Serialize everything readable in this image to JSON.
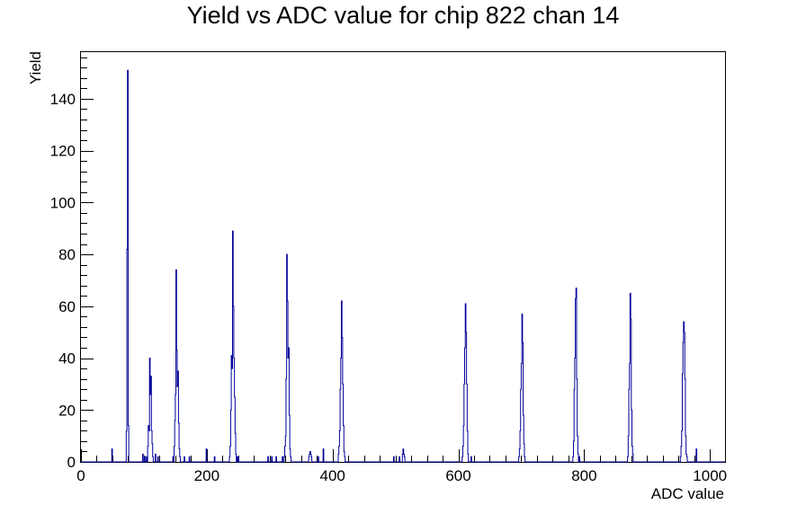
{
  "chart_data": {
    "type": "histogram",
    "title": "Yield vs ADC value for chip 822 chan 14",
    "xlabel": "ADC value",
    "ylabel": "Yield",
    "xlim": [
      0,
      1024
    ],
    "ylim": [
      0,
      158
    ],
    "xticks": [
      0,
      200,
      400,
      600,
      800,
      1000
    ],
    "yticks": [
      0,
      20,
      40,
      60,
      80,
      100,
      120,
      140
    ],
    "x_minor_step": 25,
    "y_minor_step": 4,
    "line_color": "#000099",
    "bin_width": 1,
    "bins": [
      [
        49,
        5
      ],
      [
        72,
        12
      ],
      [
        73,
        82
      ],
      [
        74,
        151
      ],
      [
        75,
        14
      ],
      [
        98,
        3
      ],
      [
        101,
        2
      ],
      [
        104,
        2
      ],
      [
        106,
        6
      ],
      [
        107,
        14
      ],
      [
        108,
        12
      ],
      [
        109,
        40
      ],
      [
        110,
        26
      ],
      [
        111,
        33
      ],
      [
        112,
        12
      ],
      [
        113,
        7
      ],
      [
        114,
        2
      ],
      [
        118,
        3
      ],
      [
        122,
        2
      ],
      [
        146,
        2
      ],
      [
        148,
        6
      ],
      [
        149,
        16
      ],
      [
        150,
        26
      ],
      [
        151,
        74
      ],
      [
        152,
        43
      ],
      [
        153,
        29
      ],
      [
        154,
        35
      ],
      [
        155,
        15
      ],
      [
        156,
        5
      ],
      [
        157,
        2
      ],
      [
        164,
        2
      ],
      [
        172,
        2
      ],
      [
        199,
        5
      ],
      [
        212,
        2
      ],
      [
        236,
        2
      ],
      [
        237,
        6
      ],
      [
        238,
        20
      ],
      [
        239,
        41
      ],
      [
        240,
        36
      ],
      [
        241,
        89
      ],
      [
        242,
        60
      ],
      [
        243,
        40
      ],
      [
        244,
        25
      ],
      [
        245,
        11
      ],
      [
        246,
        3
      ],
      [
        248,
        2
      ],
      [
        250,
        2
      ],
      [
        297,
        2
      ],
      [
        303,
        2
      ],
      [
        310,
        2
      ],
      [
        320,
        2
      ],
      [
        323,
        2
      ],
      [
        324,
        6
      ],
      [
        325,
        10
      ],
      [
        326,
        32
      ],
      [
        327,
        80
      ],
      [
        328,
        62
      ],
      [
        329,
        40
      ],
      [
        330,
        44
      ],
      [
        331,
        18
      ],
      [
        332,
        5
      ],
      [
        333,
        2
      ],
      [
        362,
        2
      ],
      [
        363,
        3
      ],
      [
        364,
        4
      ],
      [
        365,
        3
      ],
      [
        366,
        2
      ],
      [
        377,
        2
      ],
      [
        385,
        5
      ],
      [
        409,
        3
      ],
      [
        410,
        6
      ],
      [
        411,
        12
      ],
      [
        412,
        28
      ],
      [
        413,
        40
      ],
      [
        414,
        62
      ],
      [
        415,
        48
      ],
      [
        416,
        30
      ],
      [
        417,
        14
      ],
      [
        418,
        4
      ],
      [
        419,
        2
      ],
      [
        497,
        2
      ],
      [
        506,
        2
      ],
      [
        511,
        3
      ],
      [
        512,
        5
      ],
      [
        513,
        3
      ],
      [
        514,
        2
      ],
      [
        606,
        2
      ],
      [
        607,
        6
      ],
      [
        608,
        14
      ],
      [
        609,
        30
      ],
      [
        610,
        44
      ],
      [
        611,
        61
      ],
      [
        612,
        50
      ],
      [
        613,
        30
      ],
      [
        614,
        12
      ],
      [
        615,
        3
      ],
      [
        620,
        2
      ],
      [
        696,
        2
      ],
      [
        697,
        5
      ],
      [
        698,
        12
      ],
      [
        699,
        28
      ],
      [
        700,
        38
      ],
      [
        701,
        57
      ],
      [
        702,
        46
      ],
      [
        703,
        18
      ],
      [
        704,
        7
      ],
      [
        705,
        2
      ],
      [
        782,
        2
      ],
      [
        783,
        8
      ],
      [
        784,
        28
      ],
      [
        785,
        40
      ],
      [
        786,
        63
      ],
      [
        787,
        67
      ],
      [
        788,
        32
      ],
      [
        789,
        10
      ],
      [
        790,
        3
      ],
      [
        792,
        2
      ],
      [
        869,
        2
      ],
      [
        870,
        10
      ],
      [
        871,
        28
      ],
      [
        872,
        38
      ],
      [
        873,
        65
      ],
      [
        874,
        55
      ],
      [
        875,
        20
      ],
      [
        876,
        6
      ],
      [
        877,
        3
      ],
      [
        953,
        2
      ],
      [
        954,
        6
      ],
      [
        955,
        12
      ],
      [
        956,
        34
      ],
      [
        957,
        46
      ],
      [
        958,
        54
      ],
      [
        959,
        50
      ],
      [
        960,
        32
      ],
      [
        961,
        10
      ],
      [
        962,
        3
      ],
      [
        963,
        2
      ],
      [
        978,
        5
      ]
    ]
  }
}
